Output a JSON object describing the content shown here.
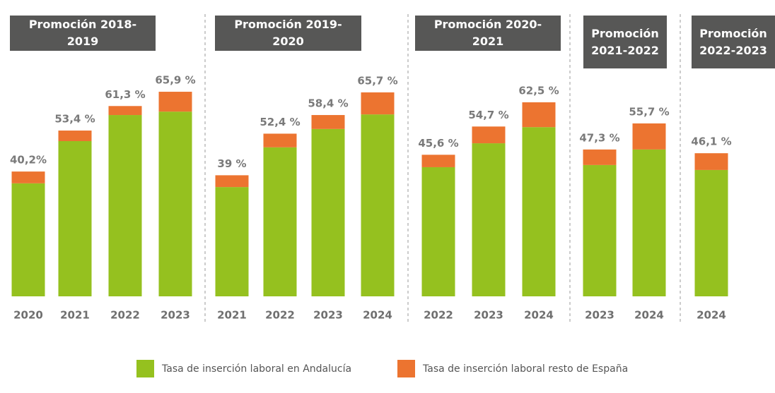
{
  "chart_data": {
    "type": "bar",
    "stacked": true,
    "legend": "bottom",
    "series": [
      {
        "name": "Tasa de inserción laboral en Andalucía",
        "color": "#95c11f"
      },
      {
        "name": "Tasa de inserción laboral resto de España",
        "color": "#ec7430"
      }
    ],
    "panels": [
      {
        "title": "Promoción 2018-2019",
        "categories": [
          "2020",
          "2021",
          "2022",
          "2023"
        ],
        "series": [
          {
            "values": [
              36.4,
              50.0,
              58.4,
              59.5
            ]
          },
          {
            "values": [
              3.8,
              3.4,
              2.9,
              6.4
            ]
          }
        ],
        "totals": [
          40.2,
          53.4,
          61.3,
          65.9
        ],
        "value_labels": [
          "40,2%",
          "53,4 %",
          "61,3 %",
          "65,9 %"
        ]
      },
      {
        "title": "Promoción 2019-2020",
        "categories": [
          "2021",
          "2022",
          "2023",
          "2024"
        ],
        "series": [
          {
            "values": [
              35.2,
              48.0,
              53.9,
              58.6
            ]
          },
          {
            "values": [
              3.8,
              4.4,
              4.5,
              7.1
            ]
          }
        ],
        "totals": [
          39,
          52.4,
          58.4,
          65.7
        ],
        "value_labels": [
          "39 %",
          "52,4 %",
          "58,4 %",
          "65,7 %"
        ]
      },
      {
        "title": "Promoción 2020-2021",
        "categories": [
          "2022",
          "2023",
          "2024"
        ],
        "series": [
          {
            "values": [
              41.6,
              49.3,
              54.5
            ]
          },
          {
            "values": [
              4.0,
              5.4,
              8.0
            ]
          }
        ],
        "totals": [
          45.6,
          54.7,
          62.5
        ],
        "value_labels": [
          "45,6 %",
          "54,7 %",
          "62,5 %"
        ]
      },
      {
        "title": "Promoción 2021-2022",
        "categories": [
          "2023",
          "2024"
        ],
        "series": [
          {
            "values": [
              42.3,
              47.3
            ]
          },
          {
            "values": [
              5.0,
              8.4
            ]
          }
        ],
        "totals": [
          47.3,
          55.7
        ],
        "value_labels": [
          "47,3 %",
          "55,7 %"
        ]
      },
      {
        "title": "Promoción 2022-2023",
        "categories": [
          "2024"
        ],
        "series": [
          {
            "values": [
              40.7
            ]
          },
          {
            "values": [
              5.4
            ]
          }
        ],
        "totals": [
          46.1
        ],
        "value_labels": [
          "46,1 %"
        ]
      }
    ]
  }
}
